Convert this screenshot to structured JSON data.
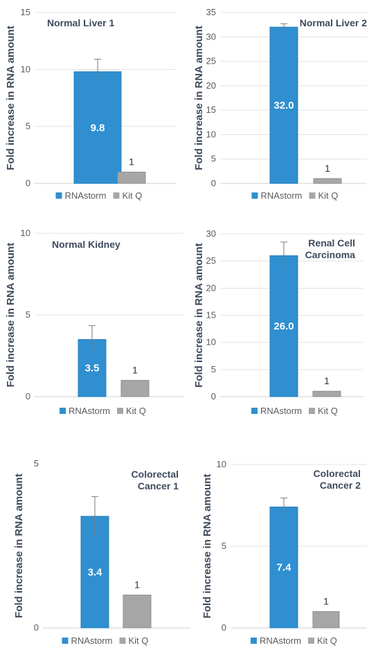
{
  "colors": {
    "rnastorm": "#2f8fd0",
    "kitq": "#a6a6a6",
    "title": "#3d4a5c",
    "grid": "#e3e3e3",
    "axis": "#5a5a5a"
  },
  "chart_data": [
    {
      "type": "bar",
      "title_lines": [
        "Normal Liver 1"
      ],
      "title_align": "left",
      "ylabel": "Fold increase in RNA amount",
      "ylim": [
        0,
        15
      ],
      "yticks": [
        0,
        5,
        10,
        15
      ],
      "grid": true,
      "legend_position": "bottom",
      "categories": [
        "RNAstorm",
        "Kit Q"
      ],
      "series": [
        {
          "name": "RNAstorm",
          "value": 9.8,
          "label": "9.8",
          "error": 1.1
        },
        {
          "name": "Kit Q",
          "value": 1,
          "label": "1"
        }
      ]
    },
    {
      "type": "bar",
      "title_lines": [
        "Normal Liver 2"
      ],
      "title_align": "right",
      "ylabel": "Fold increase in RNA amount",
      "ylim": [
        0,
        35
      ],
      "yticks": [
        0,
        5,
        10,
        15,
        20,
        25,
        30,
        35
      ],
      "grid": true,
      "legend_position": "bottom",
      "categories": [
        "RNAstorm",
        "Kit Q"
      ],
      "series": [
        {
          "name": "RNAstorm",
          "value": 32.0,
          "label": "32.0",
          "error": 0.7
        },
        {
          "name": "Kit Q",
          "value": 1,
          "label": "1"
        }
      ]
    },
    {
      "type": "bar",
      "title_lines": [
        "Normal Kidney"
      ],
      "title_align": "left",
      "ylabel": "Fold increase in RNA amount",
      "ylim": [
        0,
        10
      ],
      "yticks": [
        0,
        5,
        10
      ],
      "grid": true,
      "legend_position": "bottom",
      "categories": [
        "RNAstorm",
        "Kit Q"
      ],
      "series": [
        {
          "name": "RNAstorm",
          "value": 3.5,
          "label": "3.5",
          "error": 0.85
        },
        {
          "name": "Kit Q",
          "value": 1,
          "label": "1"
        }
      ]
    },
    {
      "type": "bar",
      "title_lines": [
        "Renal Cell",
        "Carcinoma"
      ],
      "title_align": "right",
      "ylabel": "Fold increase in RNA amount",
      "ylim": [
        0,
        30
      ],
      "yticks": [
        0,
        5,
        10,
        15,
        20,
        25,
        30
      ],
      "grid": true,
      "legend_position": "bottom",
      "categories": [
        "RNAstorm",
        "Kit Q"
      ],
      "series": [
        {
          "name": "RNAstorm",
          "value": 26.0,
          "label": "26.0",
          "error": 2.5
        },
        {
          "name": "Kit Q",
          "value": 1,
          "label": "1"
        }
      ]
    },
    {
      "type": "bar",
      "title_lines": [
        "Colorectal",
        "Cancer 1"
      ],
      "title_align": "right",
      "ylabel": "Fold increase in RNA amount",
      "ylim": [
        0,
        5
      ],
      "yticks": [
        0,
        5
      ],
      "grid": false,
      "legend_position": "bottom",
      "categories": [
        "RNAstorm",
        "Kit Q"
      ],
      "series": [
        {
          "name": "RNAstorm",
          "value": 3.4,
          "label": "3.4",
          "error": 0.6
        },
        {
          "name": "Kit Q",
          "value": 1,
          "label": "1"
        }
      ]
    },
    {
      "type": "bar",
      "title_lines": [
        "Colorectal",
        "Cancer 2"
      ],
      "title_align": "right",
      "ylabel": "Fold increase in RNA amount",
      "ylim": [
        0,
        10
      ],
      "yticks": [
        0,
        5,
        10
      ],
      "grid": true,
      "legend_position": "bottom",
      "categories": [
        "RNAstorm",
        "Kit Q"
      ],
      "series": [
        {
          "name": "RNAstorm",
          "value": 7.4,
          "label": "7.4",
          "error": 0.55
        },
        {
          "name": "Kit Q",
          "value": 1,
          "label": "1"
        }
      ]
    }
  ]
}
